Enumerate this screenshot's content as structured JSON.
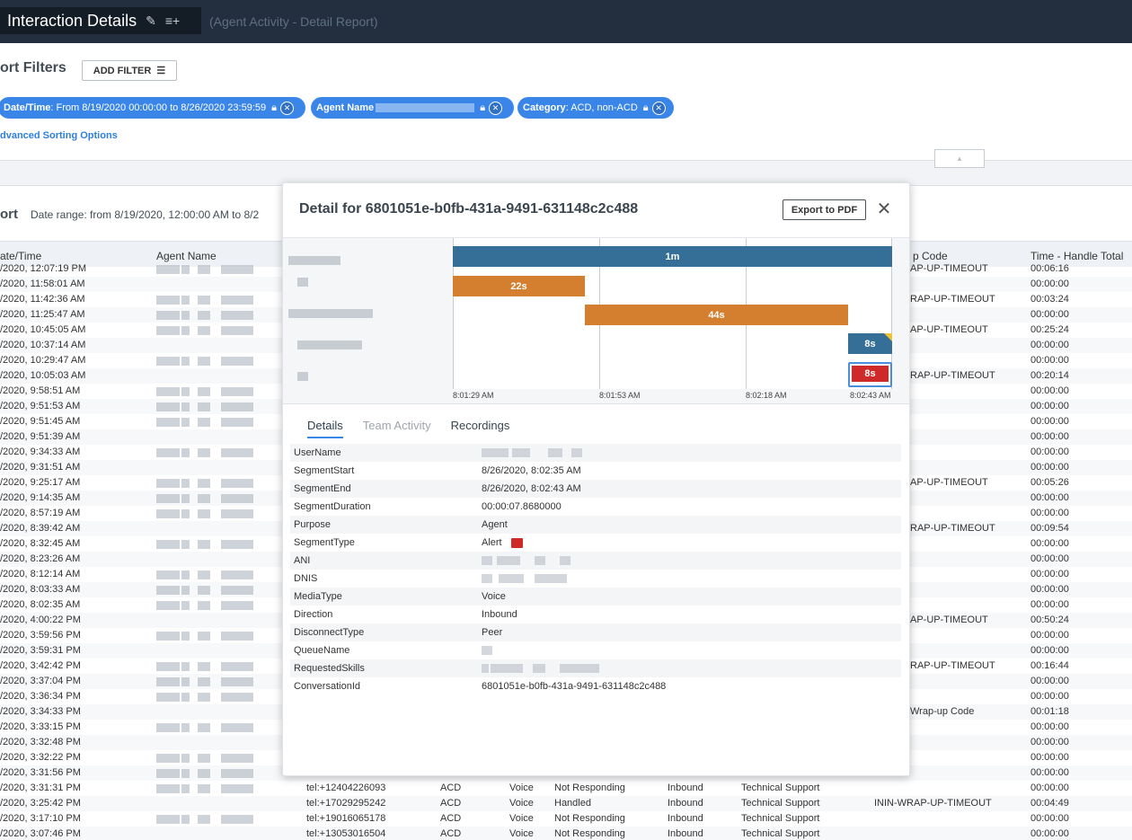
{
  "app": {
    "title": "Interaction Details",
    "subtitle": "(Agent Activity - Detail Report)"
  },
  "filters": {
    "title": "ort Filters",
    "add_filter_label": "ADD FILTER",
    "chips": [
      {
        "key": "Date/Time",
        "value": ": From 8/19/2020 00:00:00 to 8/26/2020 23:59:59"
      },
      {
        "key": "Agent Name",
        "value": ""
      },
      {
        "key": "Category",
        "value": ": ACD, non-ACD"
      }
    ],
    "advanced_sorting": "dvanced Sorting Options"
  },
  "report": {
    "title": "ort",
    "date_range": "Date range: from 8/19/2020, 12:00:00 AM to 8/2"
  },
  "table": {
    "headers": {
      "datetime": "ate/Time",
      "agent": "Agent Name",
      "wrapup": "p Code",
      "handle_total": "Time - Handle Total"
    },
    "rows": [
      {
        "time": "/2020, 12:07:19 PM",
        "wrapup": "AP-UP-TIMEOUT",
        "handle": "00:06:16"
      },
      {
        "time": "/2020, 11:58:01 AM",
        "wrapup": "",
        "handle": "00:00:00"
      },
      {
        "time": "/2020, 11:42:36 AM",
        "wrapup": "RAP-UP-TIMEOUT",
        "handle": "00:03:24"
      },
      {
        "time": "/2020, 11:25:47 AM",
        "wrapup": "",
        "handle": "00:00:00"
      },
      {
        "time": "/2020, 10:45:05 AM",
        "wrapup": "AP-UP-TIMEOUT",
        "handle": "00:25:24"
      },
      {
        "time": "/2020, 10:37:14 AM",
        "wrapup": "",
        "handle": "00:00:00"
      },
      {
        "time": "/2020, 10:29:47 AM",
        "wrapup": "",
        "handle": "00:00:00"
      },
      {
        "time": "/2020, 10:05:03 AM",
        "wrapup": "RAP-UP-TIMEOUT",
        "handle": "00:20:14"
      },
      {
        "time": "/2020, 9:58:51 AM",
        "wrapup": "",
        "handle": "00:00:00"
      },
      {
        "time": "/2020, 9:51:53 AM",
        "wrapup": "",
        "handle": "00:00:00"
      },
      {
        "time": "/2020, 9:51:45 AM",
        "wrapup": "",
        "handle": "00:00:00"
      },
      {
        "time": "/2020, 9:51:39 AM",
        "wrapup": "",
        "handle": "00:00:00"
      },
      {
        "time": "/2020, 9:34:33 AM",
        "wrapup": "",
        "handle": "00:00:00"
      },
      {
        "time": "/2020, 9:31:51 AM",
        "wrapup": "",
        "handle": "00:00:00"
      },
      {
        "time": "/2020, 9:25:17 AM",
        "wrapup": "AP-UP-TIMEOUT",
        "handle": "00:05:26"
      },
      {
        "time": "/2020, 9:14:35 AM",
        "wrapup": "",
        "handle": "00:00:00"
      },
      {
        "time": "/2020, 8:57:19 AM",
        "wrapup": "",
        "handle": "00:00:00"
      },
      {
        "time": "/2020, 8:39:42 AM",
        "wrapup": "RAP-UP-TIMEOUT",
        "handle": "00:09:54"
      },
      {
        "time": "/2020, 8:32:45 AM",
        "wrapup": "",
        "handle": "00:00:00"
      },
      {
        "time": "/2020, 8:23:26 AM",
        "wrapup": "",
        "handle": "00:00:00"
      },
      {
        "time": "/2020, 8:12:14 AM",
        "wrapup": "",
        "handle": "00:00:00"
      },
      {
        "time": "/2020, 8:03:33 AM",
        "wrapup": "",
        "handle": "00:00:00"
      },
      {
        "time": "/2020, 8:02:35 AM",
        "wrapup": "",
        "handle": "00:00:00"
      },
      {
        "time": "/2020, 4:00:22 PM",
        "wrapup": "AP-UP-TIMEOUT",
        "handle": "00:50:24"
      },
      {
        "time": "/2020, 3:59:56 PM",
        "wrapup": "",
        "handle": "00:00:00"
      },
      {
        "time": "/2020, 3:59:31 PM",
        "wrapup": "",
        "handle": "00:00:00"
      },
      {
        "time": "/2020, 3:42:42 PM",
        "wrapup": "RAP-UP-TIMEOUT",
        "handle": "00:16:44"
      },
      {
        "time": "/2020, 3:37:04 PM",
        "wrapup": "",
        "handle": "00:00:00"
      },
      {
        "time": "/2020, 3:36:34 PM",
        "wrapup": "",
        "handle": "00:00:00"
      },
      {
        "time": "/2020, 3:34:33 PM",
        "wrapup": "Wrap-up Code",
        "handle": "00:01:18"
      },
      {
        "time": "/2020, 3:33:15 PM",
        "wrapup": "",
        "handle": "00:00:00"
      },
      {
        "time": "/2020, 3:32:48 PM",
        "wrapup": "",
        "handle": "00:00:00"
      },
      {
        "time": "/2020, 3:32:22 PM",
        "wrapup": "",
        "handle": "00:00:00"
      },
      {
        "time": "/2020, 3:31:56 PM",
        "wrapup": "",
        "handle": "00:00:00"
      },
      {
        "time": "/2020, 3:31:31 PM",
        "ani": "tel:+12404226093",
        "cat": "ACD",
        "media": "Voice",
        "status": "Not Responding",
        "dir": "Inbound",
        "queue": "Technical Support",
        "wrapup": "",
        "handle": "00:00:00"
      },
      {
        "time": "/2020, 3:25:42 PM",
        "ani": "tel:+17029295242",
        "cat": "ACD",
        "media": "Voice",
        "status": "Handled",
        "dir": "Inbound",
        "queue": "Technical Support",
        "wrapup": "ININ-WRAP-UP-TIMEOUT",
        "handle": "00:04:49"
      },
      {
        "time": "/2020, 3:17:10 PM",
        "ani": "tel:+19016065178",
        "cat": "ACD",
        "media": "Voice",
        "status": "Not Responding",
        "dir": "Inbound",
        "queue": "Technical Support",
        "wrapup": "",
        "handle": "00:00:00"
      },
      {
        "time": "/2020, 3:07:46 PM",
        "ani": "tel:+13053016504",
        "cat": "ACD",
        "media": "Voice",
        "status": "Not Responding",
        "dir": "Inbound",
        "queue": "Technical Support",
        "wrapup": "",
        "handle": "00:00:00"
      }
    ]
  },
  "modal": {
    "title": "Detail for 6801051e-b0fb-431a-9491-631148c2c488",
    "export_label": "Export to PDF",
    "timeline": {
      "segments": [
        {
          "label": "1m",
          "type": "interact",
          "start": 0,
          "end": 60
        },
        {
          "label": "22s",
          "type": "hold",
          "start": 0,
          "end": 18
        },
        {
          "label": "44s",
          "type": "hold",
          "start": 18,
          "end": 54
        },
        {
          "label": "8s",
          "type": "interact",
          "start": 54,
          "end": 60
        },
        {
          "label": "8s",
          "type": "alert",
          "start": 54,
          "end": 60
        }
      ],
      "ticks": [
        "8:01:29 AM",
        "8:01:53 AM",
        "8:02:18 AM",
        "8:02:43 AM"
      ],
      "colors": {
        "interact": "#356f97",
        "hold": "#d47f2f",
        "alert": "#cf2a2a"
      }
    },
    "tabs": [
      "Details",
      "Team Activity",
      "Recordings"
    ],
    "details": [
      {
        "k": "UserName",
        "v": ""
      },
      {
        "k": "SegmentStart",
        "v": "8/26/2020, 8:02:35 AM"
      },
      {
        "k": "SegmentEnd",
        "v": "8/26/2020, 8:02:43 AM"
      },
      {
        "k": "SegmentDuration",
        "v": "00:00:07.8680000"
      },
      {
        "k": "Purpose",
        "v": "Agent"
      },
      {
        "k": "SegmentType",
        "v": "Alert"
      },
      {
        "k": "ANI",
        "v": ""
      },
      {
        "k": "DNIS",
        "v": ""
      },
      {
        "k": "MediaType",
        "v": "Voice"
      },
      {
        "k": "Direction",
        "v": "Inbound"
      },
      {
        "k": "DisconnectType",
        "v": "Peer"
      },
      {
        "k": "QueueName",
        "v": ""
      },
      {
        "k": "RequestedSkills",
        "v": ""
      },
      {
        "k": "ConversationId",
        "v": "6801051e-b0fb-431a-9491-631148c2c488"
      }
    ]
  }
}
